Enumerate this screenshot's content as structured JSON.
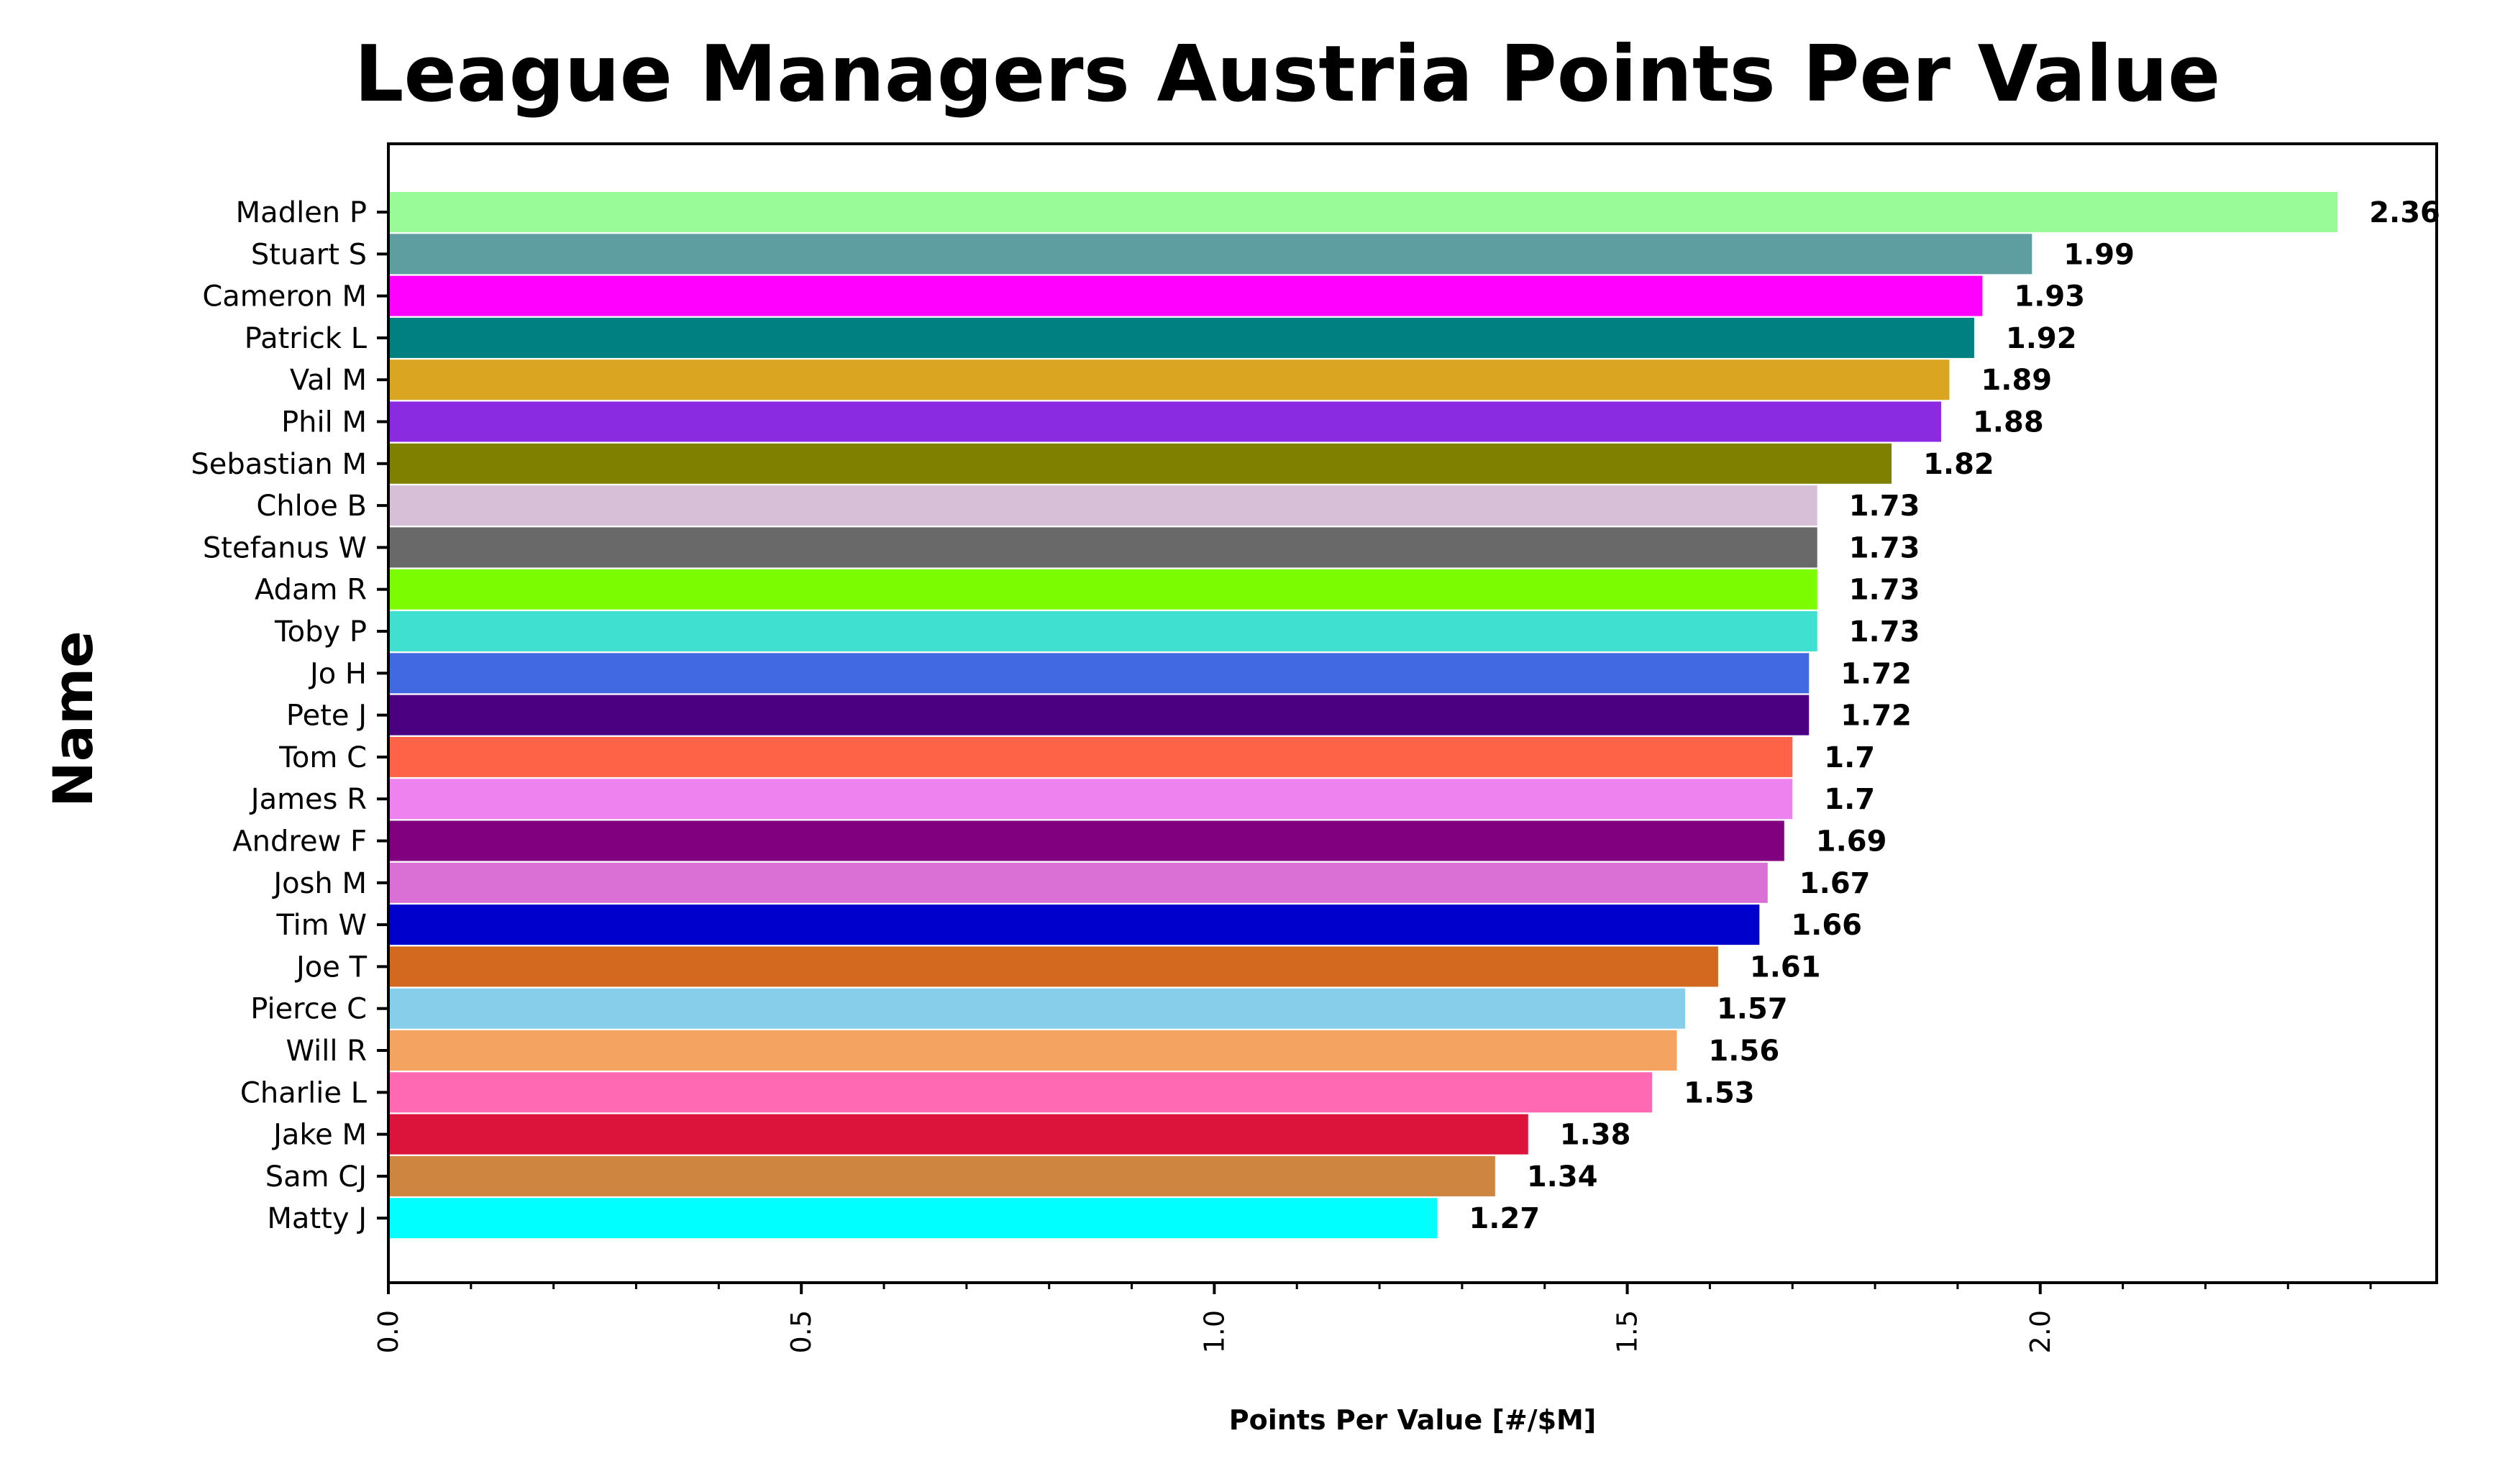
{
  "chart_data": {
    "type": "bar",
    "orientation": "horizontal",
    "title": "League Managers Austria Points Per Value",
    "xlabel": "Points Per Value [#/$M]",
    "ylabel": "Name",
    "xlim": [
      0,
      2.48
    ],
    "xticks": [
      0.0,
      0.5,
      1.0,
      1.5,
      2.0
    ],
    "xtick_labels": [
      "0.0",
      "0.5",
      "1.0",
      "1.5",
      "2.0"
    ],
    "minor_tick_step": 0.1,
    "grid": false,
    "legend": "none",
    "categories": [
      "Madlen P",
      "Stuart S",
      "Cameron M",
      "Patrick L",
      "Val M",
      "Phil M",
      "Sebastian M",
      "Chloe B",
      "Stefanus W",
      "Adam R",
      "Toby P",
      "Jo H",
      "Pete J",
      "Tom C",
      "James R",
      "Andrew F",
      "Josh M",
      "Tim W",
      "Joe T",
      "Pierce C",
      "Will R",
      "Charlie L",
      "Jake M",
      "Sam CJ",
      "Matty J"
    ],
    "values": [
      2.36,
      1.99,
      1.93,
      1.92,
      1.89,
      1.88,
      1.82,
      1.73,
      1.73,
      1.73,
      1.73,
      1.72,
      1.72,
      1.7,
      1.7,
      1.69,
      1.67,
      1.66,
      1.61,
      1.57,
      1.56,
      1.53,
      1.38,
      1.34,
      1.27
    ],
    "labels": [
      "2.36",
      "1.99",
      "1.93",
      "1.92",
      "1.89",
      "1.88",
      "1.82",
      "1.73",
      "1.73",
      "1.73",
      "1.73",
      "1.72",
      "1.72",
      "1.7",
      "1.7",
      "1.69",
      "1.67",
      "1.66",
      "1.61",
      "1.57",
      "1.56",
      "1.53",
      "1.38",
      "1.34",
      "1.27"
    ],
    "colors": [
      "#98FB98",
      "#5F9EA0",
      "#FF00FF",
      "#008080",
      "#DAA520",
      "#8A2BE2",
      "#808000",
      "#D8BFD8",
      "#696969",
      "#7CFC00",
      "#40E0D0",
      "#4169E1",
      "#4B0082",
      "#FF6347",
      "#EE82EE",
      "#800080",
      "#DA70D6",
      "#0000CD",
      "#D2691E",
      "#87CEEB",
      "#F4A460",
      "#FF69B4",
      "#DC143C",
      "#CD853F",
      "#00FFFF"
    ]
  }
}
